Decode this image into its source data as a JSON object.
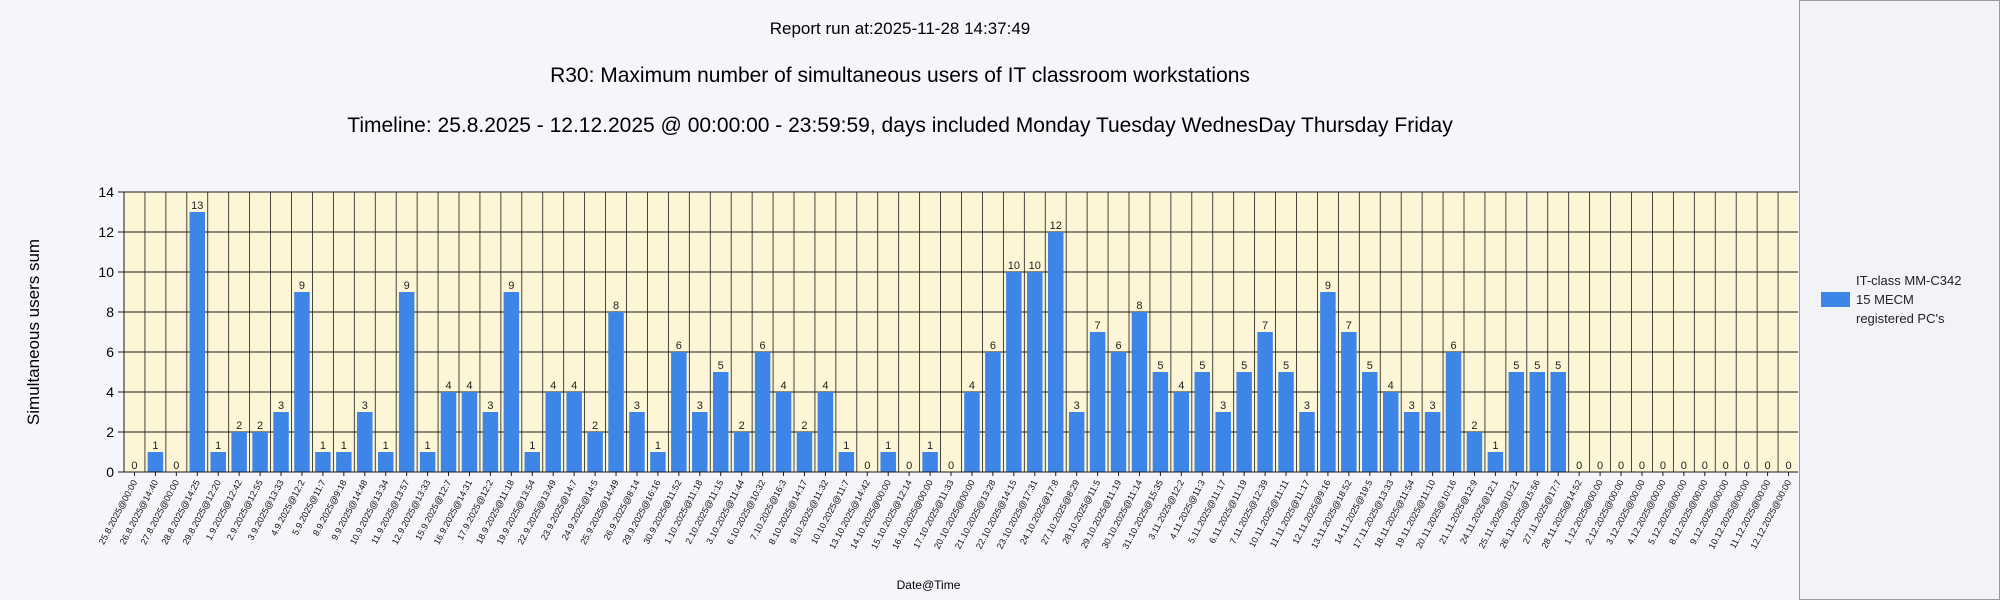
{
  "report_run": "Report run at:2025-11-28 14:37:49",
  "legend": {
    "lines": [
      "IT-class MM-C342",
      "15 MECM",
      "registered PC's"
    ],
    "color": "#3d86e8"
  },
  "chart_data": {
    "type": "bar",
    "title": "R30: Maximum number of simultaneous users of IT classroom workstations",
    "subtitle": "Timeline: 25.8.2025  - 12.12.2025  @  00:00:00 -  23:59:59, days included Monday Tuesday WednesDay Thursday Friday",
    "xlabel": "Date@Time",
    "ylabel": "Simultaneous users sum",
    "ylim": [
      0,
      14
    ],
    "yticks": [
      0,
      2,
      4,
      6,
      8,
      10,
      12,
      14
    ],
    "grid": true,
    "legend_position": "right",
    "plot_background": "#fdf6d6",
    "bar_color": "#3d86e8",
    "categories": [
      "25.8.2025@00:00",
      "26.8.2025@14:40",
      "27.8.2025@00:00",
      "28.8.2025@14:25",
      "29.8.2025@12:20",
      "1.9.2025@12:42",
      "2.9.2025@12:55",
      "3.9.2025@13:33",
      "4.9.2025@12:2",
      "5.9.2025@11:7",
      "8.9.2025@9:18",
      "9.9.2025@14:48",
      "10.9.2025@13:34",
      "11.9.2025@13:57",
      "12.9.2025@13:33",
      "15.9.2025@12:7",
      "16.9.2025@14:31",
      "17.9.2025@12:2",
      "18.9.2025@11:18",
      "19.9.2025@13:54",
      "22.9.2025@13:49",
      "23.9.2025@14:7",
      "24.9.2025@14:5",
      "25.9.2025@14:49",
      "26.9.2025@8:14",
      "29.9.2025@16:16",
      "30.9.2025@11:52",
      "1.10.2025@11:18",
      "2.10.2025@11:15",
      "3.10.2025@11:44",
      "6.10.2025@10:32",
      "7.10.2025@16:3",
      "8.10.2025@14:17",
      "9.10.2025@11:32",
      "10.10.2025@11:7",
      "13.10.2025@14:42",
      "14.10.2025@00:00",
      "15.10.2025@12:14",
      "16.10.2025@00:00",
      "17.10.2025@11:33",
      "20.10.2025@00:00",
      "21.10.2025@13:28",
      "22.10.2025@14:15",
      "23.10.2025@17:31",
      "24.10.2025@17:8",
      "27.10.2025@8:29",
      "28.10.2025@11:5",
      "29.10.2025@11:19",
      "30.10.2025@11:14",
      "31.10.2025@15:35",
      "3.11.2025@12:2",
      "4.11.2025@11:3",
      "5.11.2025@11:17",
      "6.11.2025@11:19",
      "7.11.2025@12:39",
      "10.11.2025@11:11",
      "11.11.2025@11:17",
      "12.11.2025@9:16",
      "13.11.2025@18:52",
      "14.11.2025@19:5",
      "17.11.2025@13:33",
      "18.11.2025@11:54",
      "19.11.2025@11:10",
      "20.11.2025@10:16",
      "21.11.2025@12:9",
      "24.11.2025@12:1",
      "25.11.2025@10:21",
      "26.11.2025@15:56",
      "27.11.2025@17:7",
      "28.11.2025@14:52",
      "1.12.2025@00:00",
      "2.12.2025@00:00",
      "3.12.2025@00:00",
      "4.12.2025@00:00",
      "5.12.2025@00:00",
      "8.12.2025@00:00",
      "9.12.2025@00:00",
      "10.12.2025@00:00",
      "11.12.2025@00:00",
      "12.12.2025@00:00"
    ],
    "values": [
      0,
      1,
      0,
      13,
      1,
      2,
      2,
      3,
      9,
      1,
      1,
      3,
      1,
      9,
      1,
      4,
      4,
      3,
      9,
      1,
      4,
      4,
      2,
      8,
      3,
      1,
      6,
      3,
      5,
      2,
      6,
      4,
      2,
      4,
      1,
      0,
      1,
      0,
      1,
      0,
      4,
      6,
      10,
      10,
      12,
      3,
      7,
      6,
      8,
      5,
      4,
      5,
      3,
      5,
      7,
      5,
      3,
      9,
      7,
      5,
      4,
      3,
      3,
      6,
      2,
      1,
      5,
      5,
      5,
      0,
      0,
      0,
      0,
      0,
      0,
      0,
      0,
      0,
      0,
      0
    ]
  }
}
